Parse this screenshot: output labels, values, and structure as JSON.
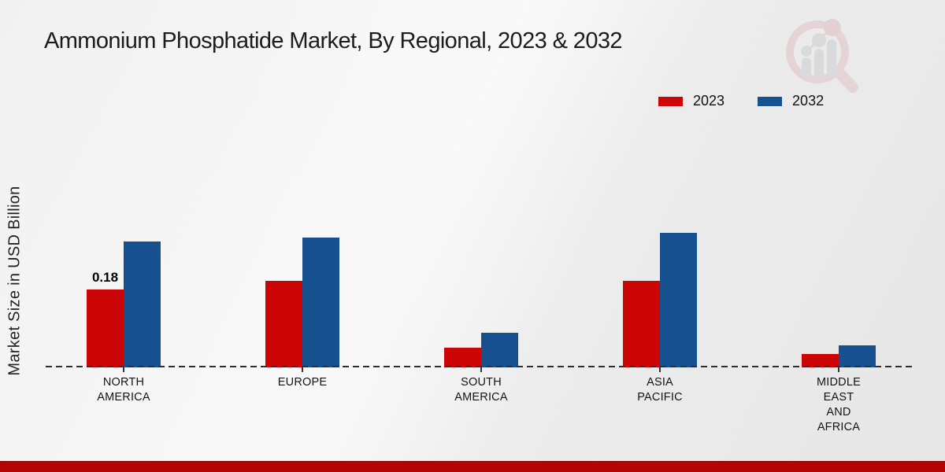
{
  "title": "Ammonium Phosphatide Market, By Regional, 2023 & 2032",
  "y_axis_label": "Market Size in USD Billion",
  "legend": [
    {
      "label": "2023",
      "color": "#cc0606"
    },
    {
      "label": "2032",
      "color": "#17508f"
    }
  ],
  "colors": {
    "series_2023": "#cc0606",
    "series_2032": "#17508f",
    "bottom_strip": "#b20404",
    "background": "#efefef",
    "baseline_dash": "#2e2e2e",
    "title_text": "#1c1c1c"
  },
  "icons": {
    "watermark": "magnifier-bar-chart-logo"
  },
  "chart_data": {
    "type": "bar",
    "title": "Ammonium Phosphatide Market, By Regional, 2023 & 2032",
    "xlabel": "",
    "ylabel": "Market Size in USD Billion",
    "categories": [
      "NORTH AMERICA",
      "EUROPE",
      "SOUTH AMERICA",
      "ASIA PACIFIC",
      "MIDDLE EAST AND AFRICA"
    ],
    "category_label_lines": [
      [
        "NORTH",
        "AMERICA"
      ],
      [
        "EUROPE"
      ],
      [
        "SOUTH",
        "AMERICA"
      ],
      [
        "ASIA",
        "PACIFIC"
      ],
      [
        "MIDDLE",
        "EAST",
        "AND",
        "AFRICA"
      ]
    ],
    "series": [
      {
        "name": "2023",
        "color": "#cc0606",
        "values": [
          0.18,
          0.2,
          0.045,
          0.2,
          0.03
        ],
        "value_labels": [
          "0.18",
          "",
          "",
          "",
          ""
        ]
      },
      {
        "name": "2032",
        "color": "#17508f",
        "values": [
          0.29,
          0.3,
          0.08,
          0.31,
          0.05
        ],
        "value_labels": [
          "",
          "",
          "",
          "",
          ""
        ]
      }
    ],
    "ylim": [
      0,
      0.35
    ],
    "grid": false,
    "y_axis_ticks_visible": false,
    "baseline_style": "dashed",
    "legend_position": "top-right"
  }
}
